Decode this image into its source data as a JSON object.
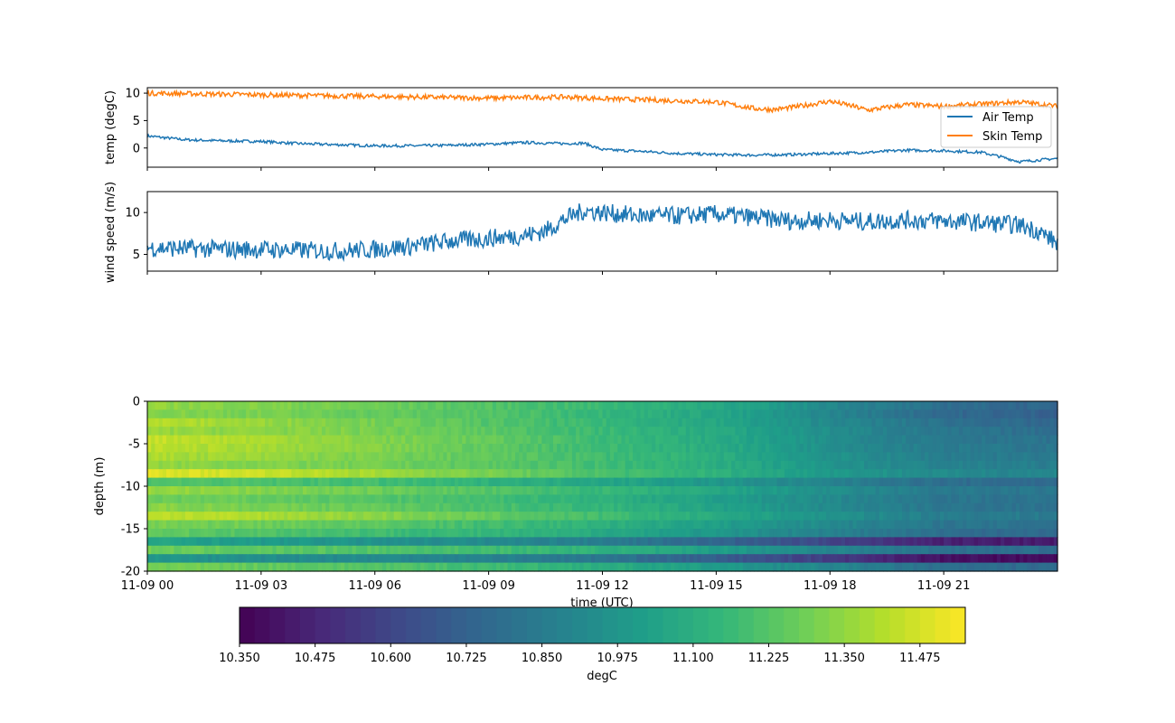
{
  "chart_data": [
    {
      "type": "line",
      "ylabel": "temp (degC)",
      "ylim": [
        -3.5,
        11
      ],
      "yticks": [
        0,
        5,
        10
      ],
      "xlim_hours": [
        0,
        24
      ],
      "x_ticks": [
        "11-09 00",
        "11-09 03",
        "11-09 06",
        "11-09 09",
        "11-09 12",
        "11-09 15",
        "11-09 18",
        "11-09 21"
      ],
      "legend_position": "right",
      "series": [
        {
          "name": "Air Temp",
          "color": "#1f77b4",
          "x_hours": [
            0,
            1,
            2,
            3,
            4,
            5,
            6,
            7,
            8,
            9,
            10,
            11,
            11.5,
            12,
            13,
            14,
            15,
            16,
            17,
            18,
            19,
            20,
            21,
            22,
            22.5,
            23,
            24
          ],
          "values": [
            2.2,
            1.5,
            1.3,
            1.2,
            0.8,
            0.6,
            0.4,
            0.4,
            0.5,
            0.7,
            1.0,
            0.8,
            0.9,
            -0.3,
            -0.6,
            -1.0,
            -1.2,
            -1.3,
            -1.2,
            -1.0,
            -0.8,
            -0.4,
            -0.5,
            -0.8,
            -1.6,
            -2.5,
            -1.9
          ]
        },
        {
          "name": "Skin Temp",
          "color": "#ff7f0e",
          "x_hours": [
            0,
            1,
            2,
            3,
            4,
            5,
            6,
            7,
            8,
            9,
            10,
            11,
            12,
            13,
            14,
            15,
            16,
            16.5,
            17,
            18,
            18.5,
            19,
            20,
            21,
            22,
            23,
            24
          ],
          "values": [
            10.0,
            9.9,
            9.8,
            9.7,
            9.6,
            9.5,
            9.4,
            9.3,
            9.2,
            9.1,
            9.2,
            9.3,
            9.0,
            8.8,
            8.6,
            8.4,
            7.2,
            7.0,
            7.4,
            8.5,
            7.8,
            6.9,
            7.9,
            7.6,
            8.0,
            8.4,
            7.6
          ]
        }
      ]
    },
    {
      "type": "line",
      "ylabel": "wind speed (m/s)",
      "ylim": [
        3,
        12.5
      ],
      "yticks": [
        5,
        10
      ],
      "xlim_hours": [
        0,
        24
      ],
      "series": [
        {
          "color": "#1f77b4",
          "x_hours": [
            0,
            1,
            2,
            3,
            4,
            5,
            6,
            7,
            8,
            9,
            10,
            10.5,
            11,
            11.5,
            12,
            13,
            14,
            15,
            16,
            17,
            18,
            19,
            20,
            21,
            22,
            23,
            23.5,
            24
          ],
          "values": [
            5.8,
            5.7,
            5.6,
            5.6,
            5.5,
            5.4,
            5.6,
            6.0,
            6.6,
            6.9,
            7.3,
            7.8,
            9.2,
            10.2,
            10.0,
            9.6,
            9.6,
            9.8,
            9.4,
            9.0,
            9.1,
            8.9,
            9.1,
            9.0,
            8.8,
            8.5,
            7.8,
            6.3
          ]
        }
      ]
    },
    {
      "type": "heatmap",
      "xlabel": "time (UTC)",
      "ylabel": "depth (m)",
      "ylim": [
        -20,
        0
      ],
      "yticks": [
        0,
        -5,
        -10,
        -15,
        -20
      ],
      "x_ticks": [
        "11-09 00",
        "11-09 03",
        "11-09 06",
        "11-09 09",
        "11-09 12",
        "11-09 15",
        "11-09 18",
        "11-09 21"
      ],
      "xlim_hours": [
        0,
        24
      ],
      "depths": [
        -0.5,
        -1.5,
        -2.5,
        -3.5,
        -4.5,
        -5.5,
        -6.5,
        -7.5,
        -8.5,
        -9.5,
        -10.5,
        -11.5,
        -12.5,
        -13.5,
        -14.5,
        -15.5,
        -16.5,
        -17.5,
        -18.5,
        -19.5
      ],
      "time_hours": [
        0,
        3,
        6,
        9,
        12,
        15,
        18,
        21,
        24
      ],
      "values": [
        [
          11.35,
          11.32,
          11.28,
          11.22,
          11.16,
          11.08,
          10.92,
          10.78,
          10.74
        ],
        [
          11.33,
          11.3,
          11.26,
          11.22,
          11.15,
          11.06,
          10.9,
          10.76,
          10.72
        ],
        [
          11.42,
          11.36,
          11.3,
          11.22,
          11.15,
          11.06,
          10.92,
          10.8,
          10.74
        ],
        [
          11.36,
          11.34,
          11.3,
          11.24,
          11.16,
          11.08,
          10.94,
          10.82,
          10.78
        ],
        [
          11.45,
          11.4,
          11.32,
          11.26,
          11.17,
          11.08,
          10.94,
          10.84,
          10.8
        ],
        [
          11.43,
          11.38,
          11.32,
          11.25,
          11.17,
          11.09,
          10.95,
          10.85,
          10.82
        ],
        [
          11.4,
          11.36,
          11.3,
          11.25,
          11.18,
          11.1,
          10.96,
          10.86,
          10.84
        ],
        [
          11.35,
          11.32,
          11.29,
          11.24,
          11.18,
          11.1,
          10.97,
          10.88,
          10.86
        ],
        [
          11.5,
          11.46,
          11.38,
          11.3,
          11.2,
          11.12,
          11.0,
          10.92,
          10.9
        ],
        [
          11.22,
          11.2,
          11.18,
          11.12,
          11.06,
          10.98,
          10.88,
          10.78,
          10.76
        ],
        [
          11.36,
          11.32,
          11.28,
          11.22,
          11.15,
          11.06,
          10.94,
          10.84,
          10.82
        ],
        [
          11.28,
          11.26,
          11.22,
          11.18,
          11.12,
          11.02,
          10.92,
          10.82,
          10.8
        ],
        [
          11.34,
          11.3,
          11.26,
          11.2,
          11.14,
          11.04,
          10.92,
          10.82,
          10.8
        ],
        [
          11.44,
          11.4,
          11.34,
          11.26,
          11.18,
          11.08,
          10.96,
          10.86,
          10.84
        ],
        [
          11.3,
          11.28,
          11.24,
          11.18,
          11.12,
          11.02,
          10.92,
          10.82,
          10.8
        ],
        [
          11.26,
          11.22,
          11.18,
          11.14,
          11.08,
          10.98,
          10.88,
          10.78,
          10.76
        ],
        [
          11.05,
          11.0,
          10.96,
          10.92,
          10.86,
          10.74,
          10.6,
          10.46,
          10.44
        ],
        [
          11.28,
          11.24,
          11.22,
          11.18,
          11.12,
          11.02,
          10.9,
          10.8,
          10.78
        ],
        [
          10.98,
          10.94,
          10.92,
          10.88,
          10.82,
          10.7,
          10.56,
          10.4,
          10.38
        ],
        [
          11.3,
          11.26,
          11.22,
          11.18,
          11.1,
          11.0,
          10.9,
          10.78,
          10.76
        ]
      ],
      "colorbar": {
        "label": "degC",
        "vmin": 10.35,
        "vmax": 11.55,
        "colormap": "viridis",
        "ticks": [
          "10.350",
          "10.475",
          "10.600",
          "10.725",
          "10.850",
          "10.975",
          "11.100",
          "11.225",
          "11.350",
          "11.475"
        ]
      }
    }
  ]
}
